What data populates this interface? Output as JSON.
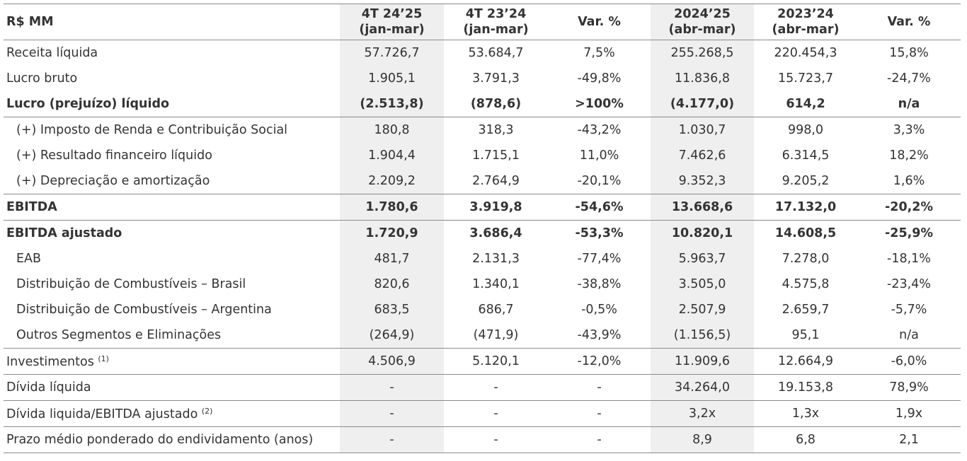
{
  "header": {
    "unit": "R$ MM",
    "columns": [
      {
        "line1": "4T 24’25",
        "line2": "(jan-mar)"
      },
      {
        "line1": "4T 23’24",
        "line2": "(jan-mar)"
      },
      {
        "line1": "Var. %",
        "line2": ""
      },
      {
        "line1": "2024’25",
        "line2": "(abr-mar)"
      },
      {
        "line1": "2023’24",
        "line2": "(abr-mar)"
      },
      {
        "line1": "Var. %",
        "line2": ""
      }
    ]
  },
  "rows": [
    {
      "label": "Receita líquida",
      "note": "",
      "values": [
        "57.726,7",
        "53.684,7",
        "7,5%",
        "255.268,5",
        "220.454,3",
        "15,8%"
      ]
    },
    {
      "label": "Lucro bruto",
      "note": "",
      "values": [
        "1.905,1",
        "3.791,3",
        "-49,8%",
        "11.836,8",
        "15.723,7",
        "-24,7%"
      ]
    },
    {
      "label": "Lucro (prejuízo) líquido",
      "note": "",
      "values": [
        "(2.513,8)",
        "(878,6)",
        ">100%",
        "(4.177,0)",
        "614,2",
        "n/a"
      ]
    },
    {
      "label": "(+) Imposto de Renda e Contribuição Social",
      "note": "",
      "values": [
        "180,8",
        "318,3",
        "-43,2%",
        "1.030,7",
        "998,0",
        "3,3%"
      ]
    },
    {
      "label": "(+) Resultado financeiro líquido",
      "note": "",
      "values": [
        "1.904,4",
        "1.715,1",
        "11,0%",
        "7.462,6",
        "6.314,5",
        "18,2%"
      ]
    },
    {
      "label": "(+) Depreciação e amortização",
      "note": "",
      "values": [
        "2.209,2",
        "2.764,9",
        "-20,1%",
        "9.352,3",
        "9.205,2",
        "1,6%"
      ]
    },
    {
      "label": "EBITDA",
      "note": "",
      "values": [
        "1.780,6",
        "3.919,8",
        "-54,6%",
        "13.668,6",
        "17.132,0",
        "-20,2%"
      ]
    },
    {
      "label": "EBITDA ajustado",
      "note": "",
      "values": [
        "1.720,9",
        "3.686,4",
        "-53,3%",
        "10.820,1",
        "14.608,5",
        "-25,9%"
      ]
    },
    {
      "label": "EAB",
      "note": "",
      "values": [
        "481,7",
        "2.131,3",
        "-77,4%",
        "5.963,7",
        "7.278,0",
        "-18,1%"
      ]
    },
    {
      "label": "Distribuição de Combustíveis – Brasil",
      "note": "",
      "values": [
        "820,6",
        "1.340,1",
        "-38,8%",
        "3.505,0",
        "4.575,8",
        "-23,4%"
      ]
    },
    {
      "label": "Distribuição de Combustíveis – Argentina",
      "note": "",
      "values": [
        "683,5",
        "686,7",
        "-0,5%",
        "2.507,9",
        "2.659,7",
        "-5,7%"
      ]
    },
    {
      "label": "Outros Segmentos e Eliminações",
      "note": "",
      "values": [
        "(264,9)",
        "(471,9)",
        "-43,9%",
        "(1.156,5)",
        "95,1",
        "n/a"
      ]
    },
    {
      "label": "Investimentos",
      "note": "(1)",
      "values": [
        "4.506,9",
        "5.120,1",
        "-12,0%",
        "11.909,6",
        "12.664,9",
        "-6,0%"
      ]
    },
    {
      "label": "Dívida líquida",
      "note": "",
      "values": [
        "-",
        "-",
        "-",
        "34.264,0",
        "19.153,8",
        "78,9%"
      ]
    },
    {
      "label": "Dívida liquida/EBITDA ajustado",
      "note": "(2)",
      "values": [
        "-",
        "-",
        "-",
        "3,2x",
        "1,3x",
        "1,9x"
      ]
    },
    {
      "label": "Prazo médio ponderado do endividamento (anos)",
      "note": "",
      "values": [
        "-",
        "-",
        "-",
        "8,9",
        "6,8",
        "2,1"
      ]
    }
  ],
  "colors": {
    "shade": "#efefef",
    "rule": "#8a8a8a",
    "text": "#333333"
  }
}
